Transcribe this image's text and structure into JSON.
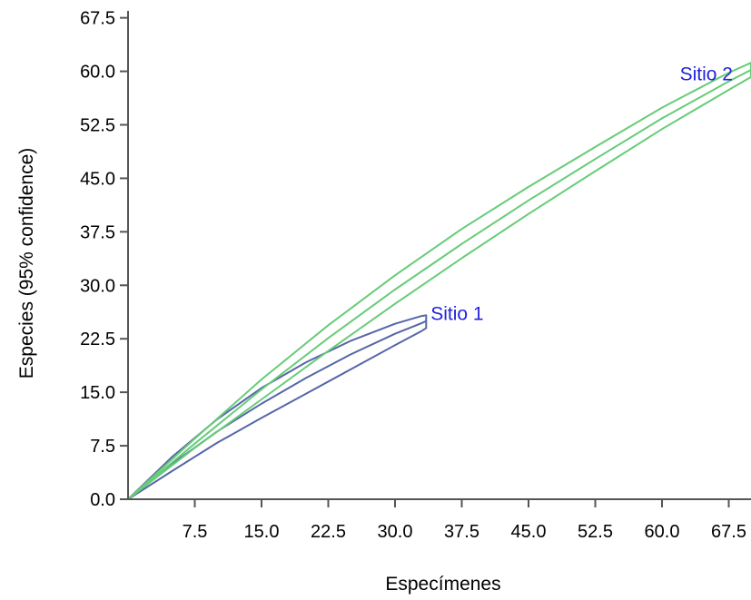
{
  "chart_data": {
    "type": "line",
    "xlabel": "Especímenes",
    "ylabel": "Especies (95% confidence)",
    "xlim": [
      0,
      70
    ],
    "ylim": [
      0,
      70
    ],
    "xticks": [
      "7.5",
      "15.0",
      "22.5",
      "30.0",
      "37.5",
      "45.0",
      "52.5",
      "60.0",
      "67.5"
    ],
    "yticks": [
      "0.0",
      "7.5",
      "15.0",
      "22.5",
      "30.0",
      "37.5",
      "45.0",
      "52.5",
      "60.0",
      "67.5"
    ],
    "grid": false,
    "legend": "none",
    "series": [
      {
        "name": "Sitio 1",
        "color": "#5566a8",
        "label_at": [
          34,
          26
        ],
        "upper": [
          [
            0,
            0
          ],
          [
            5,
            6
          ],
          [
            10,
            11.2
          ],
          [
            15,
            15.6
          ],
          [
            20,
            19.2
          ],
          [
            25,
            22.2
          ],
          [
            30,
            24.6
          ],
          [
            33,
            25.7
          ],
          [
            33.5,
            25.8
          ]
        ],
        "mean": [
          [
            0,
            0
          ],
          [
            5,
            5
          ],
          [
            10,
            9.5
          ],
          [
            15,
            13.4
          ],
          [
            20,
            17
          ],
          [
            25,
            20.3
          ],
          [
            30,
            23.2
          ],
          [
            33,
            24.7
          ],
          [
            33.5,
            25
          ]
        ],
        "lower": [
          [
            0,
            0
          ],
          [
            5,
            4
          ],
          [
            10,
            7.9
          ],
          [
            15,
            11.4
          ],
          [
            20,
            14.8
          ],
          [
            25,
            18.2
          ],
          [
            30,
            21.6
          ],
          [
            33,
            23.6
          ],
          [
            33.5,
            24
          ]
        ]
      },
      {
        "name": "Sitio 2",
        "color": "#66cc77",
        "label_at": [
          62,
          59.6
        ],
        "upper": [
          [
            0,
            0
          ],
          [
            7.5,
            8.5
          ],
          [
            15,
            16.8
          ],
          [
            22.5,
            24.4
          ],
          [
            30,
            31.4
          ],
          [
            37.5,
            37.9
          ],
          [
            45,
            43.8
          ],
          [
            52.5,
            49.4
          ],
          [
            60,
            54.9
          ],
          [
            67.5,
            59.8
          ],
          [
            70,
            61.2
          ]
        ],
        "mean": [
          [
            0,
            0
          ],
          [
            7.5,
            7.8
          ],
          [
            15,
            15.4
          ],
          [
            22.5,
            22.6
          ],
          [
            30,
            29.4
          ],
          [
            37.5,
            35.8
          ],
          [
            45,
            41.9
          ],
          [
            52.5,
            47.7
          ],
          [
            60,
            53.4
          ],
          [
            67.5,
            58.6
          ],
          [
            70,
            60.2
          ]
        ],
        "lower": [
          [
            0,
            0
          ],
          [
            7.5,
            7.2
          ],
          [
            15,
            14
          ],
          [
            22.5,
            20.8
          ],
          [
            30,
            27.4
          ],
          [
            37.5,
            33.8
          ],
          [
            45,
            40
          ],
          [
            52.5,
            46
          ],
          [
            60,
            51.9
          ],
          [
            67.5,
            57.4
          ],
          [
            70,
            59.2
          ]
        ]
      }
    ]
  }
}
